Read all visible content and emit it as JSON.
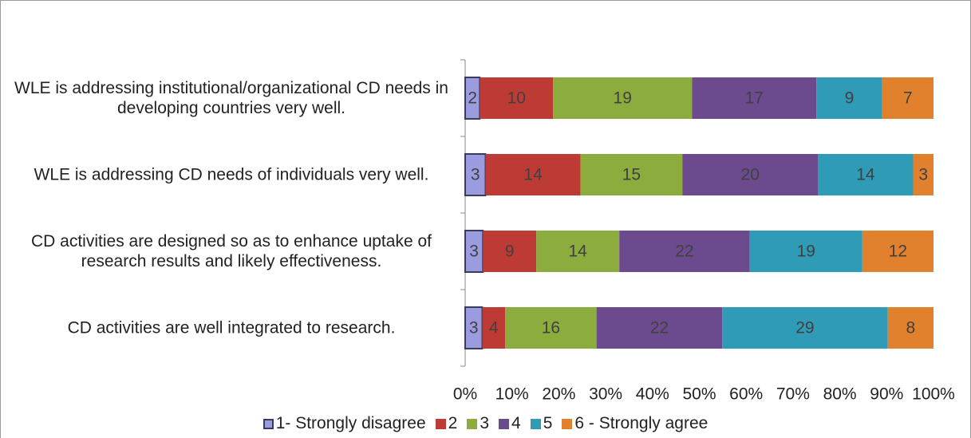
{
  "chart_data": {
    "type": "bar",
    "orientation": "horizontal",
    "stacked": "percent",
    "categories": [
      "WLE is addressing institutional/organizational CD needs in developing countries very well.",
      "WLE is addressing CD needs of individuals very well.",
      "CD activities are designed so as to enhance uptake of research results and likely effectiveness.",
      "CD activities are well integrated to research."
    ],
    "series": [
      {
        "name": "1- Strongly disagree",
        "color": "#9b9be0",
        "values": [
          2,
          3,
          3,
          3
        ]
      },
      {
        "name": "2",
        "color": "#be3b35",
        "values": [
          10,
          14,
          9,
          4
        ]
      },
      {
        "name": "3",
        "color": "#8cac3e",
        "values": [
          19,
          15,
          14,
          16
        ]
      },
      {
        "name": "4",
        "color": "#6b4a8e",
        "values": [
          17,
          20,
          22,
          22
        ]
      },
      {
        "name": "5",
        "color": "#2f9bb6",
        "values": [
          9,
          14,
          19,
          29
        ]
      },
      {
        "name": "6 - Strongly agree",
        "color": "#e1802d",
        "values": [
          7,
          3,
          12,
          8
        ]
      }
    ],
    "xlim": [
      0,
      100
    ],
    "xticks": [
      {
        "value": 0,
        "label": "0%"
      },
      {
        "value": 10,
        "label": "10%"
      },
      {
        "value": 20,
        "label": "20%"
      },
      {
        "value": 30,
        "label": "30%"
      },
      {
        "value": 40,
        "label": "40%"
      },
      {
        "value": 50,
        "label": "50%"
      },
      {
        "value": 60,
        "label": "60%"
      },
      {
        "value": 70,
        "label": "70%"
      },
      {
        "value": 80,
        "label": "80%"
      },
      {
        "value": 90,
        "label": "90%"
      },
      {
        "value": 100,
        "label": "100%"
      }
    ],
    "legend": "bottom"
  }
}
